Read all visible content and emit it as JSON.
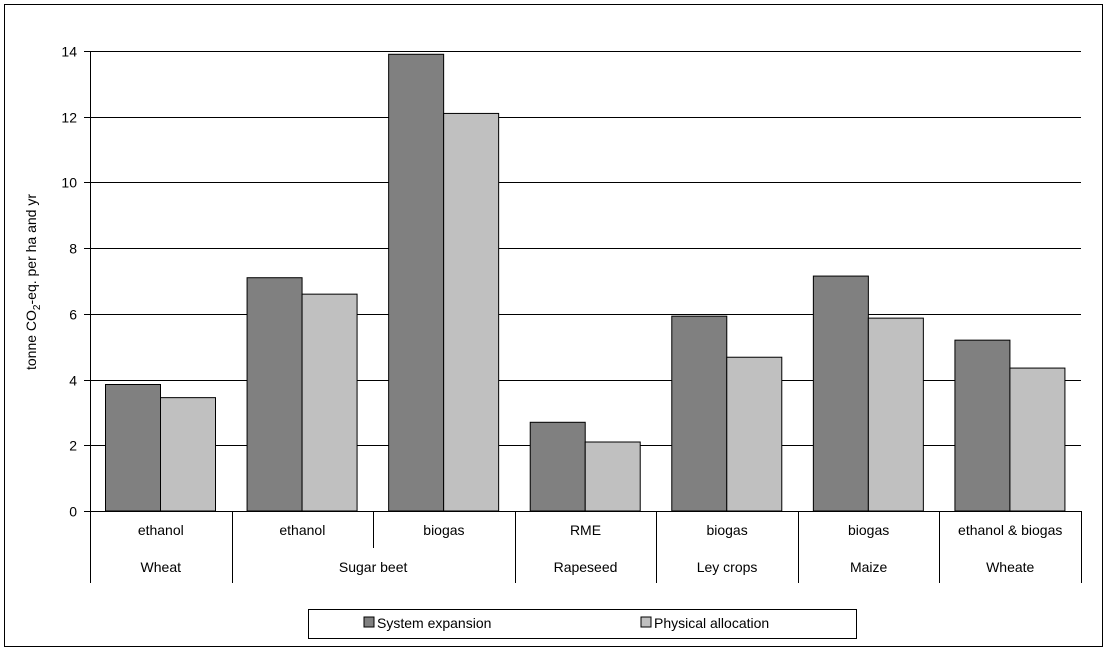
{
  "chart_data": {
    "type": "bar",
    "ylabel_main": "tonne CO",
    "ylabel_sub": "2",
    "ylabel_rest": "-eq. per ha and yr",
    "ylim": [
      0,
      14
    ],
    "yticks": [
      "0",
      "2",
      "4",
      "6",
      "8",
      "10",
      "12",
      "14"
    ],
    "grid": true,
    "legend_position": "bottom",
    "categories": [
      "ethanol",
      "ethanol",
      "biogas",
      "RME",
      "biogas",
      "biogas",
      "ethanol & biogas"
    ],
    "groups": [
      {
        "label": "Wheat",
        "span": 1
      },
      {
        "label": "Sugar beet",
        "span": 2
      },
      {
        "label": "Rapeseed",
        "span": 1
      },
      {
        "label": "Ley crops",
        "span": 1
      },
      {
        "label": "Maize",
        "span": 1
      },
      {
        "label": "Wheate",
        "span": 1
      }
    ],
    "series": [
      {
        "name": "System expansion",
        "color": "#808080",
        "values": [
          3.85,
          7.1,
          13.9,
          2.7,
          5.93,
          7.15,
          5.2
        ]
      },
      {
        "name": "Physical allocation",
        "color": "#c0c0c0",
        "values": [
          3.45,
          6.6,
          12.1,
          2.1,
          4.68,
          5.87,
          4.35
        ]
      }
    ]
  }
}
